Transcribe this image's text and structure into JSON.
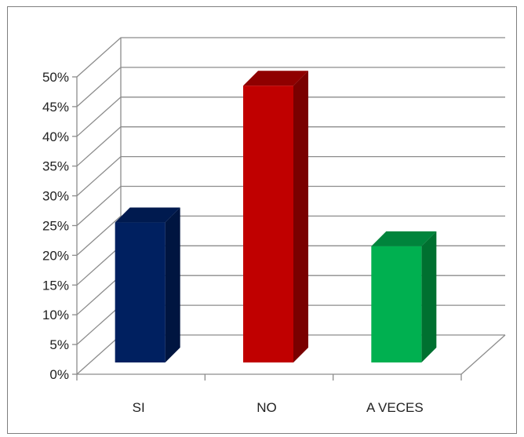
{
  "chart_data": {
    "type": "bar",
    "categories": [
      "SI",
      "NO",
      "A VECES"
    ],
    "values": [
      27.5,
      50.5,
      23.5
    ],
    "ylim": [
      0,
      50
    ],
    "yticks": [
      0,
      5,
      10,
      15,
      20,
      25,
      30,
      35,
      40,
      45,
      50
    ],
    "ytick_labels": [
      "0%",
      "5%",
      "10%",
      "15%",
      "20%",
      "25%",
      "30%",
      "35%",
      "40%",
      "45%",
      "50%"
    ],
    "title": "",
    "xlabel": "",
    "ylabel": "",
    "grid": true,
    "legend": "none",
    "style": "3d-column",
    "colors": {
      "SI": {
        "front": "#002060",
        "side": "#001540",
        "top": "#001a4f"
      },
      "NO": {
        "front": "#c00000",
        "side": "#7a0000",
        "top": "#8f0000"
      },
      "A VECES": {
        "front": "#00b050",
        "side": "#007030",
        "top": "#00843c"
      }
    }
  }
}
